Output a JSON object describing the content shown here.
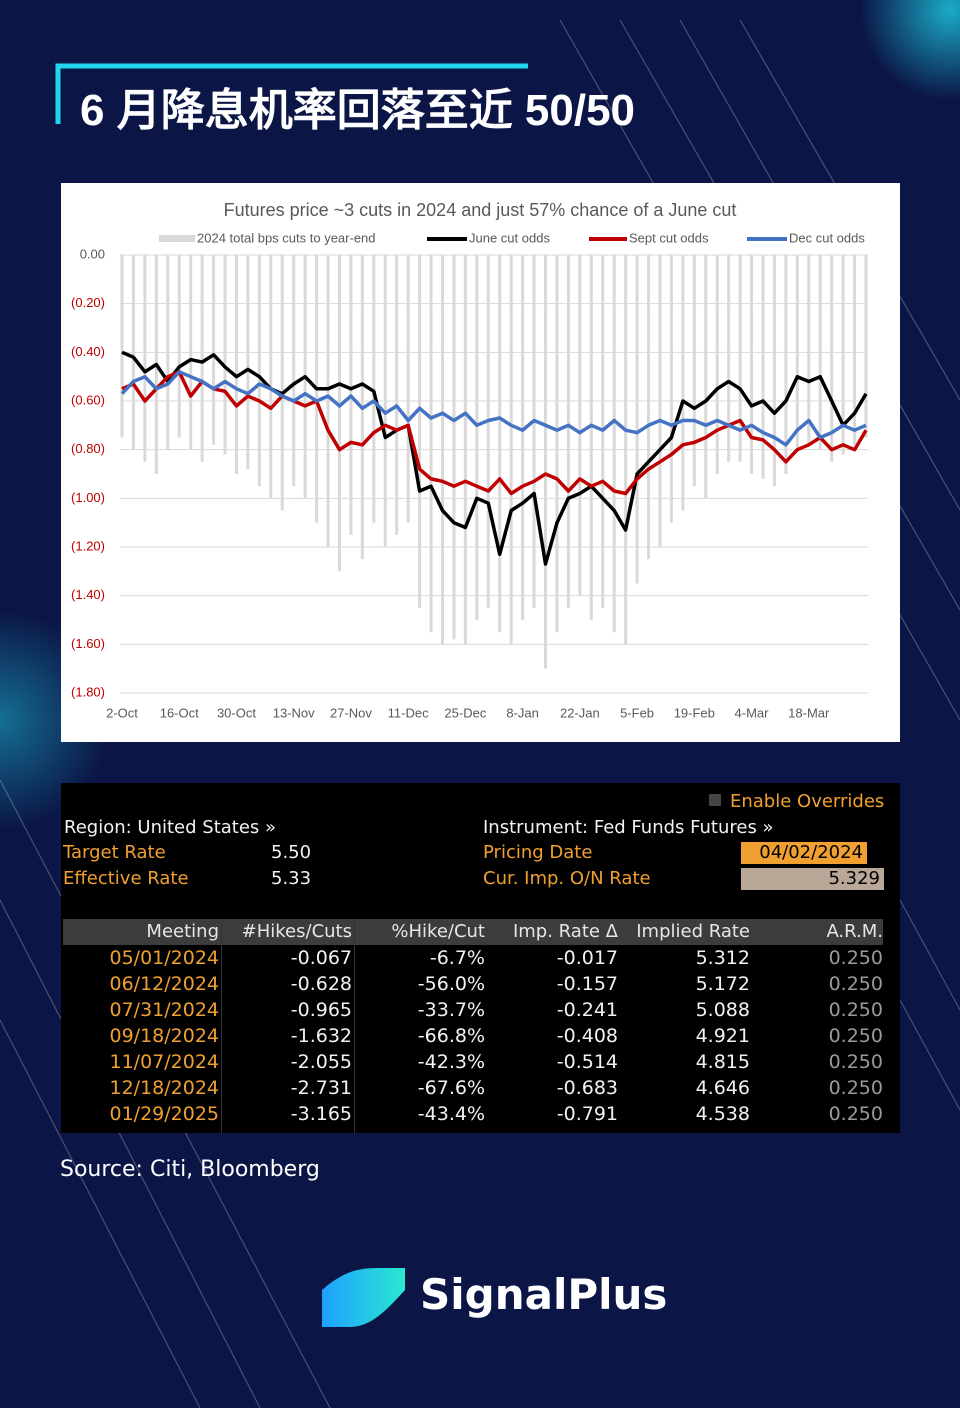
{
  "title": "6 月降息机率回落至近 50/50",
  "chart_data": {
    "type": "combo",
    "title": "Futures price ~3 cuts in 2024 and just 57% chance of a June cut",
    "categories": [
      "2-Oct",
      null,
      null,
      null,
      null,
      "16-Oct",
      null,
      null,
      null,
      null,
      "30-Oct",
      null,
      null,
      null,
      null,
      "13-Nov",
      null,
      null,
      null,
      null,
      "27-Nov",
      null,
      null,
      null,
      null,
      "11-Dec",
      null,
      null,
      null,
      null,
      "25-Dec",
      null,
      null,
      null,
      null,
      "8-Jan",
      null,
      null,
      null,
      null,
      "22-Jan",
      null,
      null,
      null,
      null,
      "5-Feb",
      null,
      null,
      null,
      null,
      "19-Feb",
      null,
      null,
      null,
      null,
      "4-Mar",
      null,
      null,
      null,
      null,
      "18-Mar",
      null,
      null,
      null,
      null,
      null
    ],
    "series": [
      {
        "name": "2024 total bps cuts to year-end",
        "type": "bar",
        "color": "#d9d9d9",
        "values": [
          -0.75,
          -0.8,
          -0.85,
          -0.9,
          -0.8,
          -0.75,
          -0.8,
          -0.85,
          -0.78,
          -0.82,
          -0.9,
          -0.88,
          -0.95,
          -1.0,
          -1.05,
          -0.95,
          -1.0,
          -1.1,
          -1.2,
          -1.3,
          -1.15,
          -1.25,
          -1.1,
          -1.2,
          -1.15,
          -1.1,
          -1.45,
          -1.55,
          -1.6,
          -1.58,
          -1.6,
          -1.5,
          -1.45,
          -1.55,
          -1.6,
          -1.5,
          -1.45,
          -1.7,
          -1.55,
          -1.45,
          -1.4,
          -1.5,
          -1.45,
          -1.55,
          -1.6,
          -1.35,
          -1.25,
          -1.2,
          -1.1,
          -1.05,
          -0.95,
          -1.0,
          -0.9,
          -0.85,
          -0.85,
          -0.9,
          -0.92,
          -0.95,
          -0.9,
          -0.8,
          -0.78,
          -0.8,
          -0.85,
          -0.82,
          -0.78,
          -0.75
        ]
      },
      {
        "name": "June cut odds",
        "type": "line",
        "color": "#000000",
        "values": [
          -0.4,
          -0.42,
          -0.48,
          -0.45,
          -0.52,
          -0.46,
          -0.43,
          -0.44,
          -0.41,
          -0.46,
          -0.5,
          -0.47,
          -0.5,
          -0.55,
          -0.57,
          -0.53,
          -0.5,
          -0.55,
          -0.55,
          -0.53,
          -0.55,
          -0.53,
          -0.56,
          -0.75,
          -0.72,
          -0.7,
          -0.97,
          -0.95,
          -1.05,
          -1.1,
          -1.12,
          -1.0,
          -1.02,
          -1.23,
          -1.05,
          -1.02,
          -0.98,
          -1.27,
          -1.1,
          -1.0,
          -0.98,
          -0.95,
          -1.0,
          -1.05,
          -1.13,
          -0.9,
          -0.85,
          -0.8,
          -0.75,
          -0.6,
          -0.63,
          -0.6,
          -0.55,
          -0.52,
          -0.55,
          -0.62,
          -0.6,
          -0.65,
          -0.6,
          -0.5,
          -0.52,
          -0.5,
          -0.6,
          -0.7,
          -0.65,
          -0.57
        ]
      },
      {
        "name": "Sept cut odds",
        "type": "line",
        "color": "#c00000",
        "values": [
          -0.55,
          -0.53,
          -0.6,
          -0.55,
          -0.5,
          -0.48,
          -0.58,
          -0.52,
          -0.55,
          -0.56,
          -0.62,
          -0.58,
          -0.6,
          -0.63,
          -0.58,
          -0.6,
          -0.62,
          -0.6,
          -0.72,
          -0.8,
          -0.77,
          -0.78,
          -0.73,
          -0.7,
          -0.72,
          -0.7,
          -0.88,
          -0.92,
          -0.93,
          -0.95,
          -0.93,
          -0.95,
          -0.97,
          -0.92,
          -0.98,
          -0.95,
          -0.93,
          -0.9,
          -0.92,
          -0.97,
          -0.92,
          -0.95,
          -0.93,
          -0.97,
          -0.98,
          -0.92,
          -0.88,
          -0.85,
          -0.82,
          -0.78,
          -0.77,
          -0.75,
          -0.72,
          -0.7,
          -0.68,
          -0.75,
          -0.76,
          -0.8,
          -0.85,
          -0.8,
          -0.78,
          -0.75,
          -0.8,
          -0.78,
          -0.8,
          -0.72
        ]
      },
      {
        "name": "Dec cut odds",
        "type": "line",
        "color": "#4472c4",
        "values": [
          -0.57,
          -0.52,
          -0.5,
          -0.55,
          -0.53,
          -0.48,
          -0.5,
          -0.52,
          -0.55,
          -0.52,
          -0.55,
          -0.57,
          -0.53,
          -0.55,
          -0.58,
          -0.6,
          -0.57,
          -0.6,
          -0.58,
          -0.62,
          -0.58,
          -0.63,
          -0.6,
          -0.65,
          -0.62,
          -0.68,
          -0.63,
          -0.67,
          -0.65,
          -0.68,
          -0.65,
          -0.7,
          -0.68,
          -0.67,
          -0.7,
          -0.72,
          -0.68,
          -0.7,
          -0.72,
          -0.7,
          -0.73,
          -0.7,
          -0.72,
          -0.68,
          -0.72,
          -0.73,
          -0.7,
          -0.68,
          -0.7,
          -0.68,
          -0.68,
          -0.7,
          -0.68,
          -0.7,
          -0.72,
          -0.7,
          -0.73,
          -0.75,
          -0.78,
          -0.72,
          -0.68,
          -0.75,
          -0.73,
          -0.7,
          -0.72,
          -0.7
        ]
      }
    ],
    "ylim": [
      -1.8,
      0
    ],
    "yticks": [
      {
        "value": 0,
        "label": "0.00"
      },
      {
        "value": -0.2,
        "label": "(0.20)"
      },
      {
        "value": -0.4,
        "label": "(0.40)"
      },
      {
        "value": -0.6,
        "label": "(0.60)"
      },
      {
        "value": -0.8,
        "label": "(0.80)"
      },
      {
        "value": -1,
        "label": "(1.00)"
      },
      {
        "value": -1.2,
        "label": "(1.20)"
      },
      {
        "value": -1.4,
        "label": "(1.40)"
      },
      {
        "value": -1.6,
        "label": "(1.60)"
      },
      {
        "value": -1.8,
        "label": "(1.80)"
      }
    ],
    "grid": true,
    "legend": "top"
  },
  "panel": {
    "enable_overrides": "Enable Overrides",
    "region": "Region: United States »",
    "instrument": "Instrument: Fed Funds Futures »",
    "target_rate_label": "Target Rate",
    "target_rate": "5.50",
    "effective_rate_label": "Effective Rate",
    "effective_rate": "5.33",
    "pricing_date_label": "Pricing Date",
    "pricing_date": "04/02/2024",
    "on_rate_label": "Cur. Imp. O/N Rate",
    "on_rate": "5.329"
  },
  "table": {
    "columns": [
      "Meeting",
      "#Hikes/Cuts",
      "%Hike/Cut",
      "Imp. Rate Δ",
      "Implied Rate",
      "A.R.M."
    ],
    "rows": [
      [
        "05/01/2024",
        "-0.067",
        "-6.7%",
        "-0.017",
        "5.312",
        "0.250"
      ],
      [
        "06/12/2024",
        "-0.628",
        "-56.0%",
        "-0.157",
        "5.172",
        "0.250"
      ],
      [
        "07/31/2024",
        "-0.965",
        "-33.7%",
        "-0.241",
        "5.088",
        "0.250"
      ],
      [
        "09/18/2024",
        "-1.632",
        "-66.8%",
        "-0.408",
        "4.921",
        "0.250"
      ],
      [
        "11/07/2024",
        "-2.055",
        "-42.3%",
        "-0.514",
        "4.815",
        "0.250"
      ],
      [
        "12/18/2024",
        "-2.731",
        "-67.6%",
        "-0.683",
        "4.646",
        "0.250"
      ],
      [
        "01/29/2025",
        "-3.165",
        "-43.4%",
        "-0.791",
        "4.538",
        "0.250"
      ]
    ]
  },
  "source": "Source: Citi, Bloomberg",
  "brand": "SignalPlus"
}
